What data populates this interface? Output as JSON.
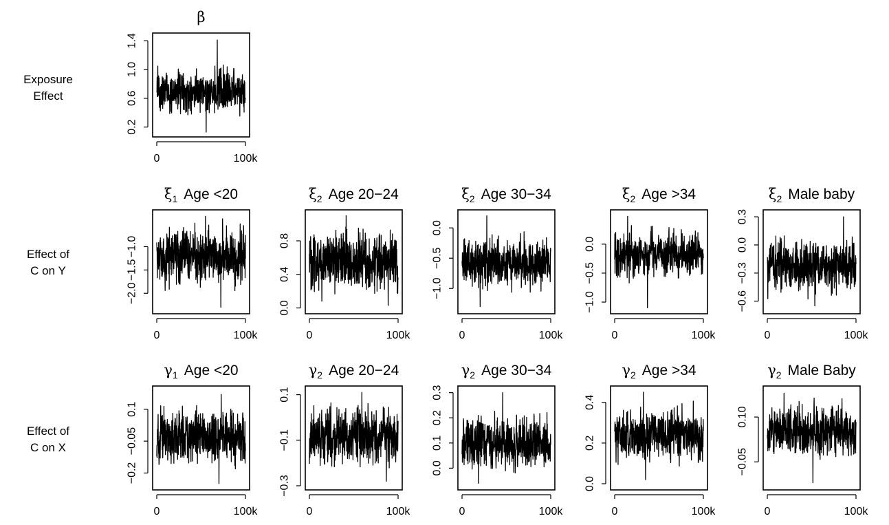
{
  "row_labels": [
    [
      "Exposure",
      "Effect"
    ],
    [
      "Effect of",
      "C on Y"
    ],
    [
      "Effect of",
      "C on X"
    ]
  ],
  "chart_data": [
    {
      "type": "line",
      "row": 0,
      "col": 0,
      "sym": "β",
      "sub": "",
      "label": "",
      "x_ticks": [
        {
          "v": 0,
          "t": "0"
        },
        {
          "v": 100000,
          "t": "100k"
        }
      ],
      "y_ticks": [
        {
          "v": 0.2,
          "t": "0.2"
        },
        {
          "v": 0.6,
          "t": "0.6"
        },
        {
          "v": 1.0,
          "t": "1.0"
        },
        {
          "v": 1.4,
          "t": "1.4"
        }
      ],
      "ylim": [
        0.12,
        1.45
      ],
      "center": 0.69,
      "spread": 0.14,
      "min": 0.13,
      "max": 1.41
    },
    {
      "type": "line",
      "row": 1,
      "col": 0,
      "sym": "ξ",
      "sub": "1",
      "label": "Age <20",
      "x_ticks": [
        {
          "v": 0,
          "t": "0"
        },
        {
          "v": 100000,
          "t": "100k"
        }
      ],
      "y_ticks": [
        {
          "v": -2.0,
          "t": "−2.0"
        },
        {
          "v": -1.5,
          "t": "−1.5"
        },
        {
          "v": -1.0,
          "t": "−1.0"
        }
      ],
      "ylim": [
        -2.35,
        -0.3
      ],
      "center": -1.22,
      "spread": 0.28,
      "min": -2.3,
      "max": -0.35
    },
    {
      "type": "line",
      "row": 1,
      "col": 1,
      "sym": "ξ",
      "sub": "2",
      "label": "Age 20−24",
      "x_ticks": [
        {
          "v": 0,
          "t": "0"
        },
        {
          "v": 100000,
          "t": "100k"
        }
      ],
      "y_ticks": [
        {
          "v": 0.0,
          "t": "0.0"
        },
        {
          "v": 0.4,
          "t": "0.4"
        },
        {
          "v": 0.8,
          "t": "0.8"
        }
      ],
      "ylim": [
        -0.02,
        1.12
      ],
      "center": 0.55,
      "spread": 0.16,
      "min": 0.03,
      "max": 1.1
    },
    {
      "type": "line",
      "row": 1,
      "col": 2,
      "sym": "ξ",
      "sub": "2",
      "label": "Age 30−34",
      "x_ticks": [
        {
          "v": 0,
          "t": "0"
        },
        {
          "v": 100000,
          "t": "100k"
        }
      ],
      "y_ticks": [
        {
          "v": -1.0,
          "t": "−1.0"
        },
        {
          "v": -0.5,
          "t": "−0.5"
        },
        {
          "v": 0.0,
          "t": "0.0"
        }
      ],
      "ylim": [
        -1.35,
        0.23
      ],
      "center": -0.56,
      "spread": 0.2,
      "min": -1.3,
      "max": 0.2
    },
    {
      "type": "line",
      "row": 1,
      "col": 3,
      "sym": "ξ",
      "sub": "2",
      "label": "Age >34",
      "x_ticks": [
        {
          "v": 0,
          "t": "0"
        },
        {
          "v": 100000,
          "t": "100k"
        }
      ],
      "y_ticks": [
        {
          "v": -1.0,
          "t": "−1.0"
        },
        {
          "v": -0.5,
          "t": "−0.5"
        },
        {
          "v": 0.0,
          "t": "0.0"
        }
      ],
      "ylim": [
        -1.13,
        0.52
      ],
      "center": -0.17,
      "spread": 0.19,
      "min": -1.1,
      "max": 0.48
    },
    {
      "type": "line",
      "row": 1,
      "col": 4,
      "sym": "ξ",
      "sub": "2",
      "label": "Male baby",
      "x_ticks": [
        {
          "v": 0,
          "t": "0"
        },
        {
          "v": 100000,
          "t": "100k"
        }
      ],
      "y_ticks": [
        {
          "v": -0.6,
          "t": "−0.6"
        },
        {
          "v": -0.3,
          "t": "−0.3"
        },
        {
          "v": 0.0,
          "t": "0.0"
        },
        {
          "v": 0.3,
          "t": "0.3"
        }
      ],
      "ylim": [
        -0.69,
        0.33
      ],
      "center": -0.22,
      "spread": 0.13,
      "min": -0.65,
      "max": 0.3
    },
    {
      "type": "line",
      "row": 2,
      "col": 0,
      "sym": "γ",
      "sub": "1",
      "label": "Age <20",
      "x_ticks": [
        {
          "v": 0,
          "t": "0"
        },
        {
          "v": 100000,
          "t": "100k"
        }
      ],
      "y_ticks": [
        {
          "v": -0.2,
          "t": "−0.2"
        },
        {
          "v": -0.05,
          "t": "−0.05"
        },
        {
          "v": 0.1,
          "t": "0.1"
        }
      ],
      "ylim": [
        -0.26,
        0.19
      ],
      "center": -0.03,
      "spread": 0.06,
      "min": -0.25,
      "max": 0.17
    },
    {
      "type": "line",
      "row": 2,
      "col": 1,
      "sym": "γ",
      "sub": "2",
      "label": "Age 20−24",
      "x_ticks": [
        {
          "v": 0,
          "t": "0"
        },
        {
          "v": 100000,
          "t": "100k"
        }
      ],
      "y_ticks": [
        {
          "v": -0.3,
          "t": "−0.3"
        },
        {
          "v": -0.1,
          "t": "−0.1"
        },
        {
          "v": 0.1,
          "t": "0.1"
        }
      ],
      "ylim": [
        -0.3,
        0.12
      ],
      "center": -0.08,
      "spread": 0.06,
      "min": -0.28,
      "max": 0.11
    },
    {
      "type": "line",
      "row": 2,
      "col": 2,
      "sym": "γ",
      "sub": "2",
      "label": "Age 30−34",
      "x_ticks": [
        {
          "v": 0,
          "t": "0"
        },
        {
          "v": 100000,
          "t": "100k"
        }
      ],
      "y_ticks": [
        {
          "v": 0.0,
          "t": "0.0"
        },
        {
          "v": 0.1,
          "t": "0.1"
        },
        {
          "v": 0.2,
          "t": "0.2"
        },
        {
          "v": 0.3,
          "t": "0.3"
        }
      ],
      "ylim": [
        -0.07,
        0.31
      ],
      "center": 0.1,
      "spread": 0.05,
      "min": -0.06,
      "max": 0.3
    },
    {
      "type": "line",
      "row": 2,
      "col": 3,
      "sym": "γ",
      "sub": "2",
      "label": "Age >34",
      "x_ticks": [
        {
          "v": 0,
          "t": "0"
        },
        {
          "v": 100000,
          "t": "100k"
        }
      ],
      "y_ticks": [
        {
          "v": 0.0,
          "t": "0.0"
        },
        {
          "v": 0.2,
          "t": "0.2"
        },
        {
          "v": 0.4,
          "t": "0.4"
        }
      ],
      "ylim": [
        -0.01,
        0.46
      ],
      "center": 0.24,
      "spread": 0.06,
      "min": 0.02,
      "max": 0.45
    },
    {
      "type": "line",
      "row": 2,
      "col": 4,
      "sym": "γ",
      "sub": "2",
      "label": "Male Baby",
      "x_ticks": [
        {
          "v": 0,
          "t": "0"
        },
        {
          "v": 100000,
          "t": "100k"
        }
      ],
      "y_ticks": [
        {
          "v": -0.05,
          "t": "−0.05"
        },
        {
          "v": 0.1,
          "t": "0.10"
        }
      ],
      "ylim": [
        -0.13,
        0.19
      ],
      "center": 0.05,
      "spread": 0.04,
      "min": -0.12,
      "max": 0.18
    }
  ]
}
